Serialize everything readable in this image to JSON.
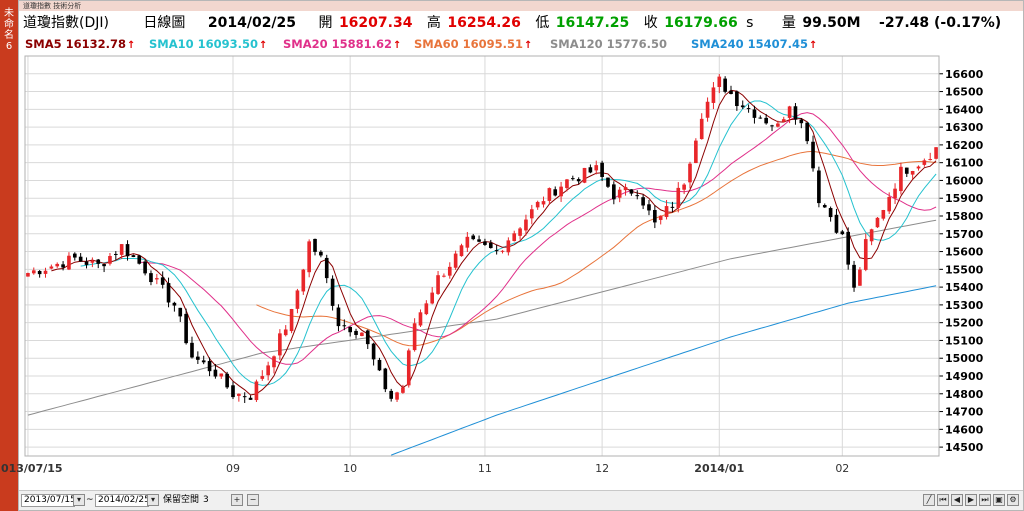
{
  "side_tab": {
    "label": "未命名6"
  },
  "window": {
    "title": "道瓊指數 技術分析"
  },
  "header": {
    "name": "道瓊指數(DJI)",
    "period": "日線圖",
    "date": "2014/02/25",
    "open_label": "開",
    "open": "16207.34",
    "high_label": "高",
    "high": "16254.26",
    "low_label": "低",
    "low": "16147.25",
    "close_label": "收",
    "close": "16179.66",
    "close_flag": "s",
    "volume_label": "量",
    "volume": "99.50M",
    "change": "-27.48 (-0.17%)"
  },
  "sma_legend": [
    {
      "label": "SMA5 16132.78",
      "color": "#8b0000"
    },
    {
      "label": "SMA10 16093.50",
      "color": "#25c2cf"
    },
    {
      "label": "SMA20 15881.62",
      "color": "#e0308a"
    },
    {
      "label": "SMA60 16095.51",
      "color": "#e8743b"
    },
    {
      "label": "SMA120 15776.50",
      "color": "#8c8c8c"
    },
    {
      "label": "SMA240 15407.45",
      "color": "#1f8fd6"
    }
  ],
  "up_arrow": "↑",
  "footer": {
    "date_from": "2013/07/15",
    "sep": "~",
    "date_to": "2014/02/25",
    "keep_label": "保留空間",
    "keep_value": "3"
  },
  "colors": {
    "up": "#e8262a",
    "down": "#000000",
    "grid": "#d9d9d9",
    "axis": "#000000"
  },
  "chart_data": {
    "type": "candlestick",
    "ylim": [
      14450,
      16700
    ],
    "yticks": [
      14500,
      14600,
      14700,
      14800,
      14900,
      15000,
      15100,
      15200,
      15300,
      15400,
      15500,
      15600,
      15700,
      15800,
      15900,
      16000,
      16100,
      16200,
      16300,
      16400,
      16500,
      16600
    ],
    "xticks": [
      {
        "label": "2013/07/15",
        "index": 0
      },
      {
        "label": "09",
        "index": 35
      },
      {
        "label": "10",
        "index": 55
      },
      {
        "label": "11",
        "index": 78
      },
      {
        "label": "12",
        "index": 98
      },
      {
        "label": "2014/01",
        "index": 118
      },
      {
        "label": "02",
        "index": 139
      }
    ],
    "anchors": [
      [
        0,
        15480
      ],
      [
        8,
        15560
      ],
      [
        12,
        15520
      ],
      [
        16,
        15630
      ],
      [
        20,
        15500
      ],
      [
        25,
        15300
      ],
      [
        28,
        15010
      ],
      [
        32,
        14920
      ],
      [
        35,
        14800
      ],
      [
        38,
        14790
      ],
      [
        41,
        14970
      ],
      [
        45,
        15250
      ],
      [
        48,
        15650
      ],
      [
        50,
        15560
      ],
      [
        53,
        15200
      ],
      [
        57,
        15150
      ],
      [
        60,
        14900
      ],
      [
        62,
        14776
      ],
      [
        64,
        14840
      ],
      [
        66,
        15200
      ],
      [
        70,
        15450
      ],
      [
        75,
        15650
      ],
      [
        80,
        15600
      ],
      [
        84,
        15750
      ],
      [
        88,
        15900
      ],
      [
        92,
        16000
      ],
      [
        97,
        16060
      ],
      [
        100,
        15920
      ],
      [
        104,
        15950
      ],
      [
        107,
        15750
      ],
      [
        110,
        15870
      ],
      [
        112,
        16000
      ],
      [
        115,
        16380
      ],
      [
        118,
        16560
      ],
      [
        121,
        16450
      ],
      [
        125,
        16360
      ],
      [
        128,
        16300
      ],
      [
        130,
        16440
      ],
      [
        133,
        16250
      ],
      [
        135,
        15900
      ],
      [
        137,
        15800
      ],
      [
        139,
        15680
      ],
      [
        141,
        15380
      ],
      [
        143,
        15640
      ],
      [
        146,
        15850
      ],
      [
        149,
        16050
      ],
      [
        152,
        16100
      ],
      [
        155,
        16180
      ]
    ],
    "sma120": [
      [
        0,
        14680
      ],
      [
        40,
        15030
      ],
      [
        80,
        15220
      ],
      [
        120,
        15560
      ],
      [
        155,
        15776.5
      ]
    ],
    "sma240": [
      [
        62,
        14455
      ],
      [
        80,
        14680
      ],
      [
        100,
        14900
      ],
      [
        120,
        15120
      ],
      [
        140,
        15310
      ],
      [
        155,
        15407.45
      ]
    ]
  }
}
